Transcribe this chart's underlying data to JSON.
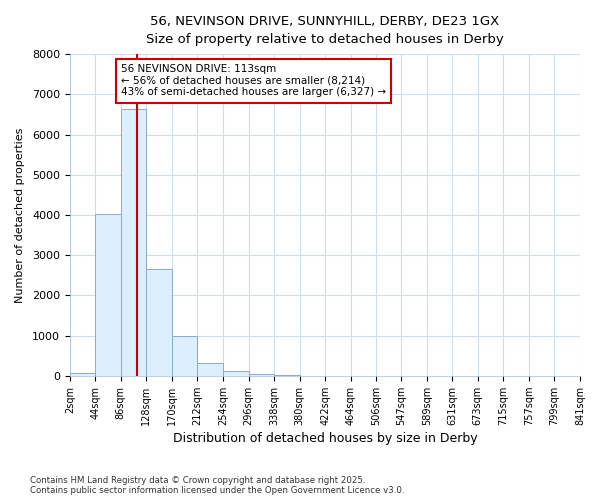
{
  "title_line1": "56, NEVINSON DRIVE, SUNNYHILL, DERBY, DE23 1GX",
  "title_line2": "Size of property relative to detached houses in Derby",
  "xlabel": "Distribution of detached houses by size in Derby",
  "ylabel": "Number of detached properties",
  "bins": [
    2,
    44,
    86,
    128,
    170,
    212,
    254,
    296,
    338,
    380,
    422,
    464,
    506,
    547,
    589,
    631,
    673,
    715,
    757,
    799,
    841
  ],
  "bar_heights": [
    60,
    4030,
    6630,
    2650,
    980,
    330,
    110,
    50,
    15,
    5,
    2,
    0,
    0,
    0,
    0,
    0,
    0,
    0,
    0,
    0
  ],
  "bar_color": "#ddeeff",
  "bar_edge_color": "#88aacc",
  "property_size": 113,
  "property_label": "56 NEVINSON DRIVE: 113sqm",
  "annotation_line2": "← 56% of detached houses are smaller (8,214)",
  "annotation_line3": "43% of semi-detached houses are larger (6,327) →",
  "vline_color": "#cc0000",
  "annotation_box_edgecolor": "#cc0000",
  "footer_line1": "Contains HM Land Registry data © Crown copyright and database right 2025.",
  "footer_line2": "Contains public sector information licensed under the Open Government Licence v3.0.",
  "ylim": [
    0,
    8000
  ],
  "yticks": [
    0,
    1000,
    2000,
    3000,
    4000,
    5000,
    6000,
    7000,
    8000
  ],
  "background_color": "#ffffff",
  "plot_background": "#ffffff",
  "grid_color": "#ccddee"
}
